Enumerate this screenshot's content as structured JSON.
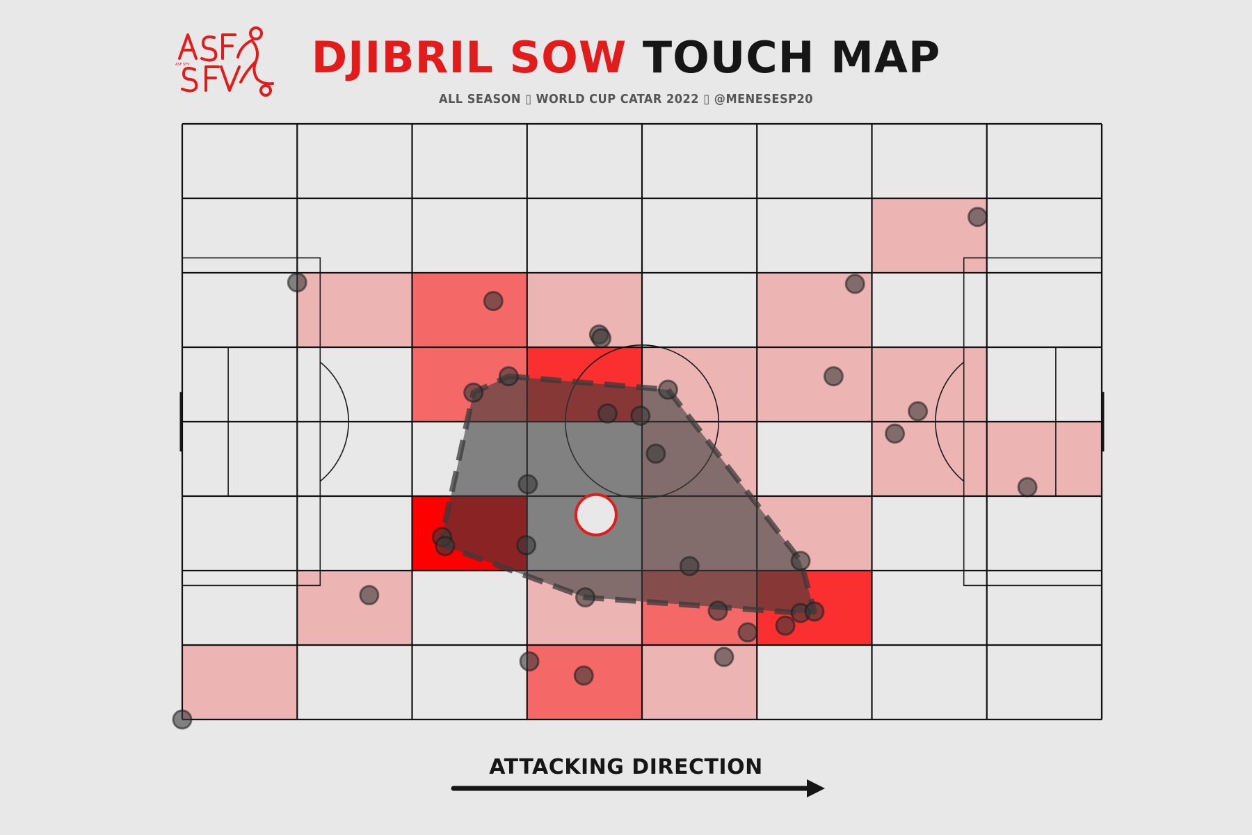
{
  "header": {
    "title_name": "DJIBRIL SOW",
    "title_rest": "TOUCH MAP",
    "subtitle": "ALL SEASON ▯ WORLD CUP CATAR 2022 ▯ @MENESESP20",
    "logo_text": "ASF SFV",
    "logo_icon": "swiss-football-association-logo-icon"
  },
  "footer": {
    "direction_label": "ATTACKING DIRECTION",
    "arrow_icon": "arrow-right-icon"
  },
  "colors": {
    "background": "#e8e8e8",
    "accent": "#e21b1b",
    "heat_low": "#edb4b4",
    "heat_mid": "#f46868",
    "heat_high": "#fa3030",
    "heat_max": "#ff0000",
    "hull_fill": "#3c3c3c",
    "touch": "#3a3a3a"
  },
  "chart_data": {
    "type": "scatter",
    "title": "DJIBRIL SOW TOUCH MAP",
    "subtitle": "ALL SEASON ▯ WORLD CUP CATAR 2022 ▯ @MENESESP20",
    "xlim": [
      0,
      120
    ],
    "ylim": [
      0,
      80
    ],
    "grid": {
      "columns": 8,
      "rows": 8
    },
    "heatmap_bins": [
      {
        "col": 6,
        "row": 1,
        "level": 1
      },
      {
        "col": 1,
        "row": 2,
        "level": 1
      },
      {
        "col": 2,
        "row": 2,
        "level": 2
      },
      {
        "col": 3,
        "row": 2,
        "level": 1
      },
      {
        "col": 5,
        "row": 2,
        "level": 1
      },
      {
        "col": 2,
        "row": 3,
        "level": 2
      },
      {
        "col": 3,
        "row": 3,
        "level": 3
      },
      {
        "col": 4,
        "row": 3,
        "level": 1
      },
      {
        "col": 5,
        "row": 3,
        "level": 1
      },
      {
        "col": 6,
        "row": 3,
        "level": 1
      },
      {
        "col": 4,
        "row": 4,
        "level": 1
      },
      {
        "col": 6,
        "row": 4,
        "level": 1
      },
      {
        "col": 7,
        "row": 4,
        "level": 1
      },
      {
        "col": 2,
        "row": 5,
        "level": 4
      },
      {
        "col": 4,
        "row": 5,
        "level": 1
      },
      {
        "col": 5,
        "row": 5,
        "level": 1
      },
      {
        "col": 1,
        "row": 6,
        "level": 1
      },
      {
        "col": 3,
        "row": 6,
        "level": 1
      },
      {
        "col": 4,
        "row": 6,
        "level": 2
      },
      {
        "col": 5,
        "row": 6,
        "level": 3
      },
      {
        "col": 0,
        "row": 7,
        "level": 1
      },
      {
        "col": 3,
        "row": 7,
        "level": 2
      },
      {
        "col": 4,
        "row": 7,
        "level": 1
      }
    ],
    "touches": [
      {
        "x": 103.8,
        "y": 67.5
      },
      {
        "x": 15.0,
        "y": 58.7
      },
      {
        "x": 40.6,
        "y": 56.2
      },
      {
        "x": 87.8,
        "y": 58.5
      },
      {
        "x": 54.4,
        "y": 51.7
      },
      {
        "x": 54.7,
        "y": 51.2
      },
      {
        "x": 42.6,
        "y": 46.1
      },
      {
        "x": 38.0,
        "y": 43.9
      },
      {
        "x": 63.4,
        "y": 44.3
      },
      {
        "x": 85.0,
        "y": 46.1
      },
      {
        "x": 55.5,
        "y": 41.1
      },
      {
        "x": 59.8,
        "y": 40.8
      },
      {
        "x": 96.0,
        "y": 41.4
      },
      {
        "x": 93.0,
        "y": 38.4
      },
      {
        "x": 61.8,
        "y": 35.7
      },
      {
        "x": 110.3,
        "y": 31.2
      },
      {
        "x": 45.1,
        "y": 31.6
      },
      {
        "x": 33.9,
        "y": 24.5
      },
      {
        "x": 34.3,
        "y": 23.3
      },
      {
        "x": 44.9,
        "y": 23.4
      },
      {
        "x": 66.2,
        "y": 20.6
      },
      {
        "x": 80.7,
        "y": 21.3
      },
      {
        "x": 24.4,
        "y": 16.7
      },
      {
        "x": 52.6,
        "y": 16.4
      },
      {
        "x": 69.9,
        "y": 14.6
      },
      {
        "x": 80.7,
        "y": 14.3
      },
      {
        "x": 82.5,
        "y": 14.5
      },
      {
        "x": 73.8,
        "y": 11.7
      },
      {
        "x": 78.7,
        "y": 12.6
      },
      {
        "x": 70.7,
        "y": 8.4
      },
      {
        "x": 45.3,
        "y": 7.8
      },
      {
        "x": 52.4,
        "y": 5.9
      },
      {
        "x": 0.0,
        "y": 0.0
      }
    ],
    "hull": [
      {
        "x": 42.6,
        "y": 46.1
      },
      {
        "x": 63.4,
        "y": 44.3
      },
      {
        "x": 80.7,
        "y": 21.3
      },
      {
        "x": 82.5,
        "y": 14.5
      },
      {
        "x": 80.7,
        "y": 14.3
      },
      {
        "x": 52.6,
        "y": 16.4
      },
      {
        "x": 34.3,
        "y": 23.3
      },
      {
        "x": 33.9,
        "y": 24.5
      },
      {
        "x": 38.0,
        "y": 43.9
      }
    ],
    "average_position": {
      "x": 54.0,
      "y": 27.5
    },
    "legend": "none"
  }
}
